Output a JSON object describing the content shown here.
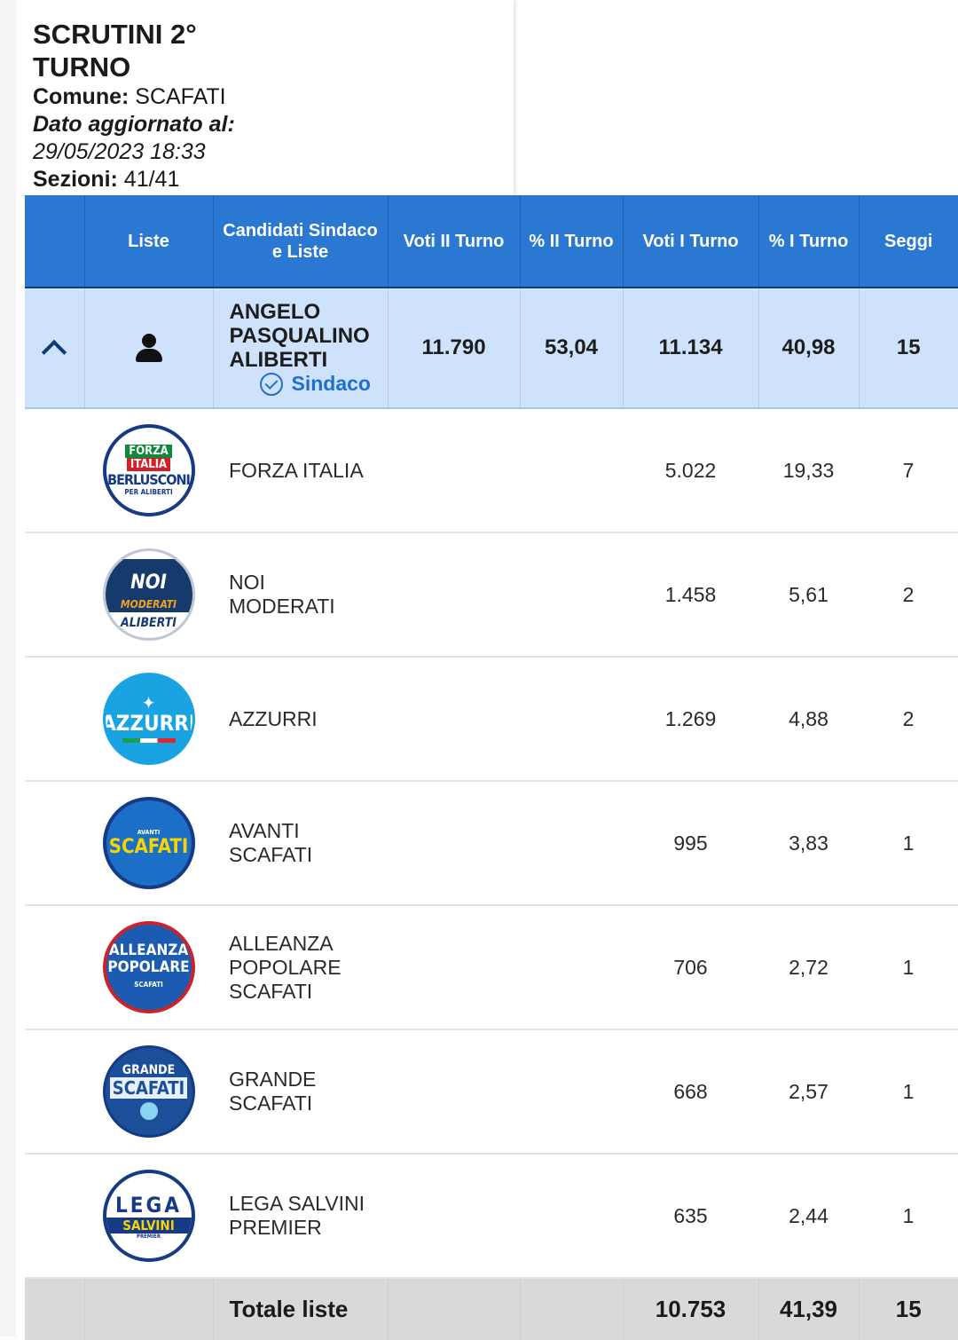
{
  "header": {
    "title": "SCRUTINI 2° TURNO",
    "comune_label": "Comune:",
    "comune_value": "SCAFATI",
    "updated_label": "Dato aggiornato al:",
    "updated_value": "29/05/2023 18:33",
    "sezioni_label": "Sezioni:",
    "sezioni_value": "41/41"
  },
  "columns": {
    "liste": "Liste",
    "candidati": "Candidati Sindaco e Liste",
    "voti2": "Voti II Turno",
    "perc2": "% II Turno",
    "voti1": "Voti I Turno",
    "perc1": "% I Turno",
    "seggi": "Seggi"
  },
  "candidate": {
    "name": "ANGELO PASQUALINO ALIBERTI",
    "badge": "Sindaco",
    "voti2": "11.790",
    "perc2": "53,04",
    "voti1": "11.134",
    "perc1": "40,98",
    "seggi": "15",
    "expand_icon": "chevron-up-icon",
    "avatar_icon": "person-icon"
  },
  "lists": [
    {
      "name": "FORZA ITALIA",
      "voti1": "5.022",
      "perc1": "19,33",
      "seggi": "7",
      "logo": {
        "line1": "FORZA",
        "line2": "ITALIA",
        "line3": "BERLUSCONI",
        "line4": "PER ALIBERTI"
      }
    },
    {
      "name": "NOI MODERATI",
      "voti1": "1.458",
      "perc1": "5,61",
      "seggi": "2",
      "logo": {
        "line1": "NOI",
        "line2": "MODERATI",
        "line3": "ALIBERTI"
      }
    },
    {
      "name": "AZZURRI",
      "voti1": "1.269",
      "perc1": "4,88",
      "seggi": "2",
      "logo": {
        "line1": "AZZURRI"
      }
    },
    {
      "name": "AVANTI SCAFATI",
      "voti1": "995",
      "perc1": "3,83",
      "seggi": "1",
      "logo": {
        "line1": "SCAFATI",
        "line2": "AVANTI"
      }
    },
    {
      "name": "ALLEANZA POPOLARE SCAFATI",
      "voti1": "706",
      "perc1": "2,72",
      "seggi": "1",
      "logo": {
        "line1": "ALLEANZA",
        "line2": "POPOLARE",
        "line3": "SCAFATI"
      }
    },
    {
      "name": "GRANDE SCAFATI",
      "voti1": "668",
      "perc1": "2,57",
      "seggi": "1",
      "logo": {
        "line1": "GRANDE",
        "line2": "SCAFATI"
      }
    },
    {
      "name": "LEGA SALVINI PREMIER",
      "voti1": "635",
      "perc1": "2,44",
      "seggi": "1",
      "logo": {
        "line1": "LEGA",
        "line2": "SALVINI",
        "line3": "PREMIER"
      }
    }
  ],
  "total": {
    "label": "Totale liste",
    "voti1": "10.753",
    "perc1": "41,39",
    "seggi": "15"
  },
  "colors": {
    "header_blue": "#2b78d3",
    "candidate_row": "#cfe2fb",
    "sindaco_blue": "#1f6fd1",
    "total_row": "#d9d9d9"
  }
}
